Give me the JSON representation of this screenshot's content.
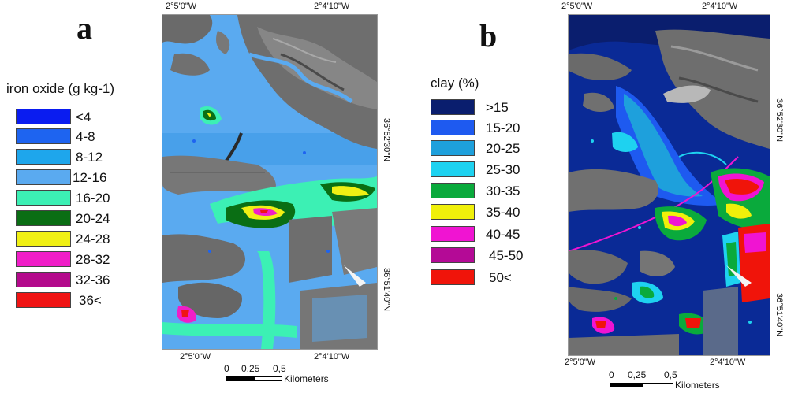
{
  "panel_a": {
    "letter": "a",
    "legend_title": "iron oxide (g kg-1)",
    "legend": [
      {
        "label": "<4",
        "color": "#0a1cf0"
      },
      {
        "label": "4-8",
        "color": "#1e64f0"
      },
      {
        "label": "8-12",
        "color": "#1ea6ec"
      },
      {
        "label": "12-16",
        "color": "#5aaaf0"
      },
      {
        "label": "16-20",
        "color": "#3cf0b4"
      },
      {
        "label": "20-24",
        "color": "#0a6e14"
      },
      {
        "label": "24-28",
        "color": "#f0f014"
      },
      {
        "label": "28-32",
        "color": "#f01ec8"
      },
      {
        "label": "32-36",
        "color": "#b40a8c"
      },
      {
        "label": "36<",
        "color": "#f01414"
      }
    ],
    "top_lon_labels": [
      "2°5'0\"W",
      "2°4'10\"W"
    ],
    "bottom_lon_labels": [
      "2°5'0\"W",
      "2°4'10\"W"
    ],
    "right_lat_labels": [
      "36°52'30\"N",
      "36°51'40\"N"
    ],
    "scale": {
      "ticks": [
        "0",
        "0,25",
        "0,5"
      ],
      "unit": "Kilometers"
    }
  },
  "panel_b": {
    "letter": "b",
    "legend_title": "clay (%)",
    "legend": [
      {
        "label": ">15",
        "color": "#0a1e6e"
      },
      {
        "label": "15-20",
        "color": "#1e5af0"
      },
      {
        "label": "20-25",
        "color": "#1ea0dc"
      },
      {
        "label": "25-30",
        "color": "#1ed2f0"
      },
      {
        "label": "30-35",
        "color": "#0aaa3c"
      },
      {
        "label": "35-40",
        "color": "#f0f00a"
      },
      {
        "label": "40-45",
        "color": "#f014d2"
      },
      {
        "label": "45-50",
        "color": "#b40a96"
      },
      {
        "label": "50<",
        "color": "#f0140a"
      }
    ],
    "top_lon_labels": [
      "2°5'0\"W",
      "2°4'10\"W"
    ],
    "bottom_lon_labels": [
      "2°5'0\"W",
      "2°4'10\"W"
    ],
    "right_lat_labels": [
      "36°52'30\"N",
      "36°51'40\"N"
    ],
    "scale": {
      "ticks": [
        "0",
        "0,25",
        "0,5"
      ],
      "unit": "Kilometers"
    }
  }
}
